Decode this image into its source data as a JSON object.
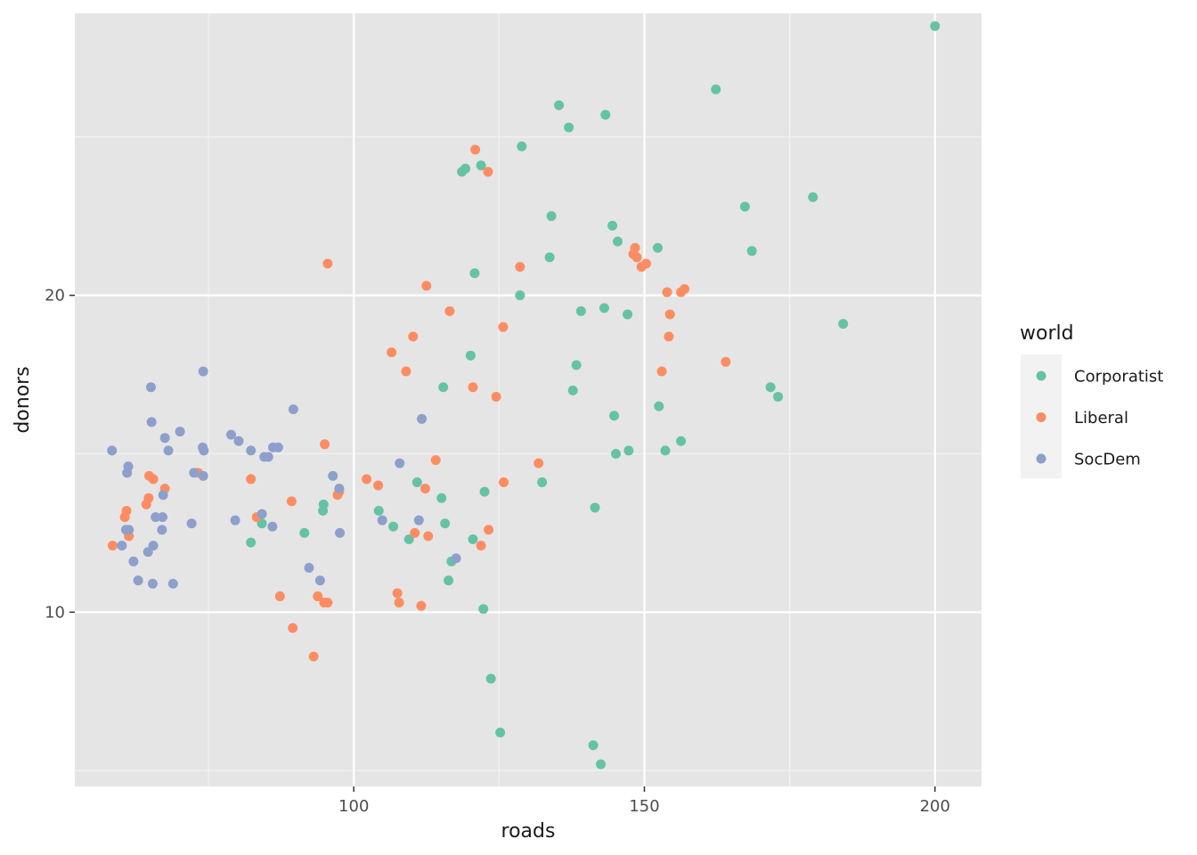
{
  "chart_data": {
    "type": "scatter",
    "xlabel": "roads",
    "ylabel": "donors",
    "x_ticks": [
      100,
      150,
      200
    ],
    "y_ticks": [
      10,
      20
    ],
    "x_tick_labels": [
      "100",
      "150",
      "200"
    ],
    "y_tick_labels": [
      "10",
      "20"
    ],
    "xlim": [
      52,
      208
    ],
    "ylim": [
      4.5,
      28.9
    ],
    "grid": true,
    "background": "#e5e5e5",
    "legend": {
      "title": "world",
      "placement": "right"
    },
    "series": [
      {
        "name": "Corporatist",
        "color": "#66c2a5",
        "points": [
          [
            200,
            28.5
          ],
          [
            162.3,
            26.5
          ],
          [
            135.3,
            26.0
          ],
          [
            143.3,
            25.7
          ],
          [
            137,
            25.3
          ],
          [
            128.9,
            24.7
          ],
          [
            118.6,
            23.9
          ],
          [
            119.2,
            24.0
          ],
          [
            121.9,
            24.1
          ],
          [
            179,
            23.1
          ],
          [
            167.3,
            22.8
          ],
          [
            134,
            22.5
          ],
          [
            144.5,
            22.2
          ],
          [
            145.4,
            21.7
          ],
          [
            152.3,
            21.5
          ],
          [
            168.5,
            21.4
          ],
          [
            133.7,
            21.2
          ],
          [
            120.8,
            20.7
          ],
          [
            128.6,
            20.0
          ],
          [
            143.1,
            19.6
          ],
          [
            139.1,
            19.5
          ],
          [
            147.1,
            19.4
          ],
          [
            184.2,
            19.1
          ],
          [
            120.1,
            18.1
          ],
          [
            138.3,
            17.8
          ],
          [
            115.4,
            17.1
          ],
          [
            137.7,
            17.0
          ],
          [
            171.7,
            17.1
          ],
          [
            173,
            16.8
          ],
          [
            152.5,
            16.5
          ],
          [
            144.8,
            16.2
          ],
          [
            156.3,
            15.4
          ],
          [
            153.6,
            15.1
          ],
          [
            147.3,
            15.1
          ],
          [
            145.1,
            15.0
          ],
          [
            110.9,
            14.1
          ],
          [
            132.4,
            14.1
          ],
          [
            122.5,
            13.8
          ],
          [
            115.1,
            13.6
          ],
          [
            94.8,
            13.4
          ],
          [
            94.7,
            13.2
          ],
          [
            104.3,
            13.2
          ],
          [
            141.5,
            13.3
          ],
          [
            84.2,
            12.8
          ],
          [
            106.8,
            12.7
          ],
          [
            115.7,
            12.8
          ],
          [
            91.5,
            12.5
          ],
          [
            109.5,
            12.3
          ],
          [
            120.5,
            12.3
          ],
          [
            82.3,
            12.2
          ],
          [
            116.8,
            11.6
          ],
          [
            116.3,
            11.0
          ],
          [
            122.3,
            10.1
          ],
          [
            123.6,
            7.9
          ],
          [
            125.2,
            6.2
          ],
          [
            141.2,
            5.8
          ],
          [
            142.5,
            5.2
          ]
        ]
      },
      {
        "name": "Liberal",
        "color": "#fc8d62",
        "points": [
          [
            120.9,
            24.6
          ],
          [
            123.1,
            23.9
          ],
          [
            95.5,
            21.0
          ],
          [
            128.6,
            20.9
          ],
          [
            148.4,
            21.5
          ],
          [
            148.1,
            21.3
          ],
          [
            148.7,
            21.2
          ],
          [
            150.3,
            21.0
          ],
          [
            149.5,
            20.9
          ],
          [
            112.5,
            20.3
          ],
          [
            153.9,
            20.1
          ],
          [
            156.3,
            20.1
          ],
          [
            156.9,
            20.2
          ],
          [
            116.5,
            19.5
          ],
          [
            154.4,
            19.4
          ],
          [
            125.7,
            19.0
          ],
          [
            110.2,
            18.7
          ],
          [
            154.2,
            18.7
          ],
          [
            106.5,
            18.2
          ],
          [
            164,
            17.9
          ],
          [
            109,
            17.6
          ],
          [
            153,
            17.6
          ],
          [
            120.5,
            17.1
          ],
          [
            124.5,
            16.8
          ],
          [
            95,
            15.3
          ],
          [
            114.1,
            14.8
          ],
          [
            131.8,
            14.7
          ],
          [
            64.8,
            14.3
          ],
          [
            73.2,
            14.4
          ],
          [
            65.5,
            14.2
          ],
          [
            102.2,
            14.2
          ],
          [
            82.3,
            14.2
          ],
          [
            104.2,
            14.0
          ],
          [
            112.3,
            13.9
          ],
          [
            125.8,
            14.1
          ],
          [
            67.5,
            13.9
          ],
          [
            97.5,
            13.8
          ],
          [
            97.2,
            13.7
          ],
          [
            64.7,
            13.6
          ],
          [
            64.3,
            13.4
          ],
          [
            89.3,
            13.5
          ],
          [
            60.9,
            13.2
          ],
          [
            60.6,
            13.0
          ],
          [
            83.3,
            13.0
          ],
          [
            123.2,
            12.6
          ],
          [
            110.5,
            12.5
          ],
          [
            112.8,
            12.4
          ],
          [
            61.3,
            12.4
          ],
          [
            58.5,
            12.1
          ],
          [
            121.9,
            12.1
          ],
          [
            87.3,
            10.5
          ],
          [
            93.8,
            10.5
          ],
          [
            107.5,
            10.6
          ],
          [
            107.8,
            10.3
          ],
          [
            94.9,
            10.3
          ],
          [
            95.5,
            10.3
          ],
          [
            111.6,
            10.2
          ],
          [
            89.5,
            9.5
          ],
          [
            93.1,
            8.6
          ]
        ]
      },
      {
        "name": "SocDem",
        "color": "#8da0cb",
        "points": [
          [
            74.1,
            17.6
          ],
          [
            65.1,
            17.1
          ],
          [
            65.2,
            16.0
          ],
          [
            89.6,
            16.4
          ],
          [
            111.7,
            16.1
          ],
          [
            70.1,
            15.7
          ],
          [
            78.9,
            15.6
          ],
          [
            67.5,
            15.5
          ],
          [
            80.2,
            15.4
          ],
          [
            74,
            15.2
          ],
          [
            86.1,
            15.2
          ],
          [
            87,
            15.2
          ],
          [
            74.2,
            15.1
          ],
          [
            68.1,
            15.1
          ],
          [
            82.3,
            15.1
          ],
          [
            58.4,
            15.1
          ],
          [
            85.3,
            14.9
          ],
          [
            84.6,
            14.9
          ],
          [
            61.2,
            14.6
          ],
          [
            107.9,
            14.7
          ],
          [
            61,
            14.4
          ],
          [
            72.5,
            14.4
          ],
          [
            74.1,
            14.3
          ],
          [
            96.4,
            14.3
          ],
          [
            97.5,
            13.9
          ],
          [
            67.2,
            13.7
          ],
          [
            65.9,
            13.0
          ],
          [
            67.1,
            13.0
          ],
          [
            84.2,
            13.1
          ],
          [
            79.6,
            12.9
          ],
          [
            104.9,
            12.9
          ],
          [
            111.2,
            12.9
          ],
          [
            72.1,
            12.8
          ],
          [
            86,
            12.7
          ],
          [
            60.8,
            12.6
          ],
          [
            61.3,
            12.6
          ],
          [
            67,
            12.6
          ],
          [
            97.6,
            12.5
          ],
          [
            60.1,
            12.1
          ],
          [
            65.5,
            12.1
          ],
          [
            64.6,
            11.9
          ],
          [
            117.6,
            11.7
          ],
          [
            62.1,
            11.6
          ],
          [
            92.3,
            11.4
          ],
          [
            94.2,
            11.0
          ],
          [
            62.9,
            11.0
          ],
          [
            65.4,
            10.9
          ],
          [
            68.9,
            10.9
          ]
        ]
      }
    ]
  }
}
